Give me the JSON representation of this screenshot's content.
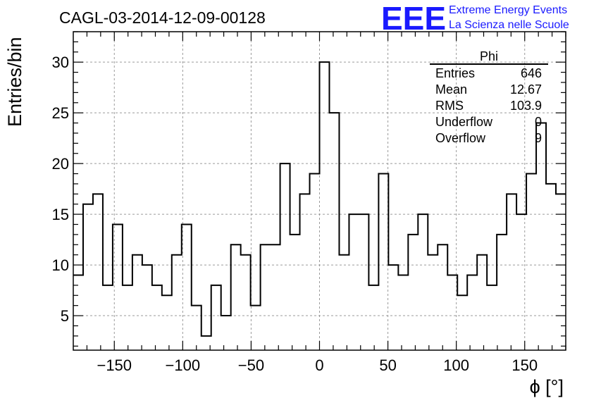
{
  "chart_data": {
    "type": "bar",
    "title": "CAGL-03-2014-12-09-00128",
    "xlabel": "ϕ [°]",
    "ylabel": "Entries/bin",
    "xlim": [
      -180,
      180
    ],
    "ylim": [
      1.6,
      33
    ],
    "grid": true,
    "x_ticks": [
      -150,
      -100,
      -50,
      0,
      50,
      100,
      150
    ],
    "y_ticks": [
      5,
      10,
      15,
      20,
      25,
      30
    ],
    "bin_edges": [
      -180,
      -172.8,
      -165.6,
      -158.4,
      -151.2,
      -144,
      -136.8,
      -129.6,
      -122.4,
      -115.2,
      -108,
      -100.8,
      -93.6,
      -86.4,
      -79.2,
      -72,
      -64.8,
      -57.6,
      -50.4,
      -43.2,
      -36,
      -28.8,
      -21.6,
      -14.4,
      -7.2,
      0,
      7.2,
      14.4,
      21.6,
      28.8,
      36,
      43.2,
      50.4,
      57.6,
      64.8,
      72,
      79.2,
      86.4,
      93.6,
      100.8,
      108,
      115.2,
      122.4,
      129.6,
      136.8,
      144,
      151.2,
      158.4,
      165.6,
      172.8,
      180
    ],
    "values": [
      9,
      16,
      17,
      8,
      14,
      8,
      11,
      10,
      8,
      7,
      11,
      14,
      6,
      3,
      8,
      5,
      12,
      11,
      6,
      12,
      12,
      20,
      13,
      17,
      19,
      30,
      25,
      11,
      15,
      15,
      8,
      19,
      10,
      9,
      13,
      15,
      11,
      12,
      9,
      7,
      9,
      11,
      8,
      13,
      17,
      15,
      19,
      24,
      18,
      17
    ]
  },
  "stats_box": {
    "title": "Phi",
    "rows": [
      {
        "label": "Entries",
        "value": "646"
      },
      {
        "label": "Mean",
        "value": "12.67"
      },
      {
        "label": "RMS",
        "value": "103.9"
      },
      {
        "label": "Underflow",
        "value": "0"
      },
      {
        "label": "Overflow",
        "value": "9"
      }
    ]
  },
  "logo": {
    "mark": "EEE",
    "line1": "Extreme Energy Events",
    "line2": "La Scienza nelle Scuole",
    "color": "#1a1aff"
  }
}
